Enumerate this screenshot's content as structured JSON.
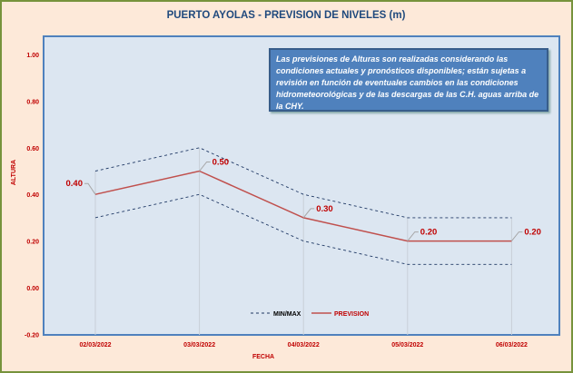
{
  "chart_data": {
    "type": "line",
    "title": "PUERTO AYOLAS - PREVISION DE NIVELES (m)",
    "xlabel": "FECHA",
    "ylabel": "ALTURA",
    "ylim": [
      -0.2,
      1.0
    ],
    "yticks": [
      "1.00",
      "0.80",
      "0.60",
      "0.40",
      "0.20",
      "0.00",
      "-0.20"
    ],
    "ytick_values": [
      1.0,
      0.8,
      0.6,
      0.4,
      0.2,
      0.0,
      -0.2
    ],
    "categories": [
      "02/03/2022",
      "03/03/2022",
      "04/03/2022",
      "05/03/2022",
      "06/03/2022"
    ],
    "series": [
      {
        "name": "PREVISION",
        "values": [
          0.4,
          0.5,
          0.3,
          0.2,
          0.2
        ],
        "labels": [
          "0.40",
          "0.50",
          "0.30",
          "0.20",
          "0.20"
        ],
        "color": "#c0504d"
      },
      {
        "name": "MIN/MAX",
        "max": [
          0.5,
          0.6,
          0.4,
          0.3,
          0.3
        ],
        "min": [
          0.3,
          0.4,
          0.2,
          0.1,
          0.1
        ],
        "color": "#1f3864"
      }
    ],
    "legend": "bottom-center",
    "annotation": "Las previsiones de Alturas son realizadas considerando las condiciones actuales y pronósticos disponibles;  están sujetas a revisión en función de eventuales cambios en las condiciones hidrometeorológicas y de las descargas de las C.H. aguas arriba de la CHY."
  }
}
